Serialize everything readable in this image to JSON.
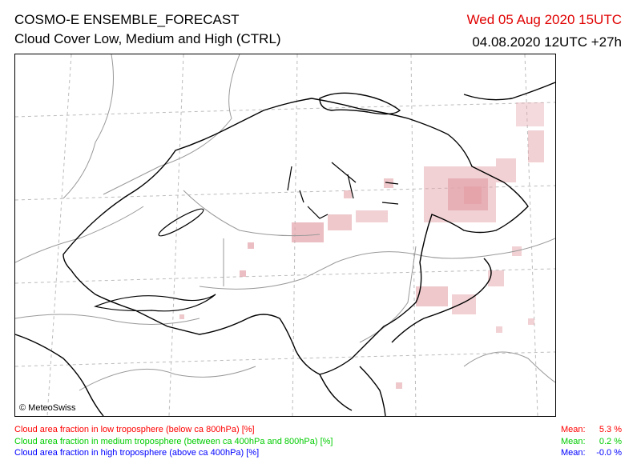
{
  "header": {
    "model_title": "COSMO-E ENSEMBLE_FORECAST",
    "product_title": "Cloud Cover Low, Medium and High (CTRL)",
    "valid_time": "Wed 05 Aug 2020 15UTC",
    "run_time": "04.08.2020 12UTC +27h"
  },
  "map": {
    "copyright": "© MeteoSwiss",
    "colors": {
      "low_cloud": "#e3a3a9",
      "border": "#000000",
      "rivers": "#999999",
      "grid": "#bbbbbb"
    }
  },
  "legend": [
    {
      "label": "Cloud area fraction in low troposphere (below ca 800hPa) [%]",
      "mean_label": "Mean:",
      "mean_value": "5.3 %",
      "color": "#ff0000"
    },
    {
      "label": "Cloud area fraction in medium troposphere (between ca 400hPa and 800hPa) [%]",
      "mean_label": "Mean:",
      "mean_value": "0.2 %",
      "color": "#00cc00"
    },
    {
      "label": "Cloud area fraction in high troposphere (above ca 400hPa) [%]",
      "mean_label": "Mean:",
      "mean_value": "-0.0 %",
      "color": "#0000ff"
    }
  ]
}
